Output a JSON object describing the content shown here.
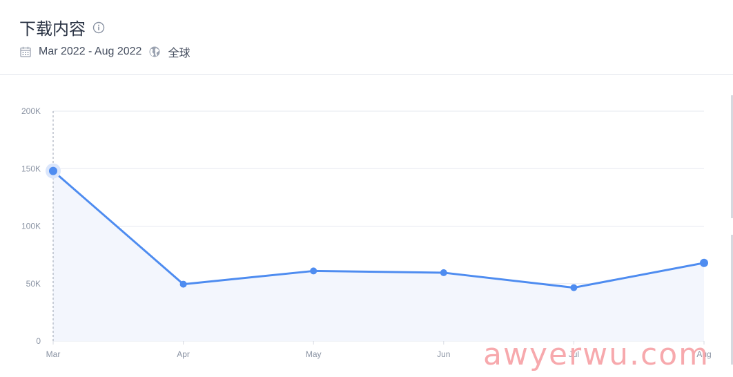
{
  "header": {
    "title": "下载内容",
    "date_range": "Mar 2022 - Aug 2022",
    "region": "全球",
    "icons": [
      "info-icon",
      "calendar-icon",
      "globe-icon"
    ]
  },
  "chart_data": {
    "type": "line",
    "title": "",
    "xlabel": "",
    "ylabel": "",
    "categories": [
      "Mar",
      "Apr",
      "May",
      "Jun",
      "Jul",
      "Aug"
    ],
    "series": [
      {
        "values": [
          148000,
          49500,
          61000,
          59500,
          46500,
          68000
        ]
      }
    ],
    "yticks": [
      "0",
      "50K",
      "100K",
      "150K",
      "200K"
    ],
    "ytick_values": [
      0,
      50000,
      100000,
      150000,
      200000
    ],
    "ylim": [
      0,
      200000
    ],
    "grid": true,
    "legend": "none",
    "highlighted_point": "Mar",
    "color": "#4e8cf0",
    "fill_color": "#f3f6fd"
  },
  "watermark": "awyerwu.com"
}
